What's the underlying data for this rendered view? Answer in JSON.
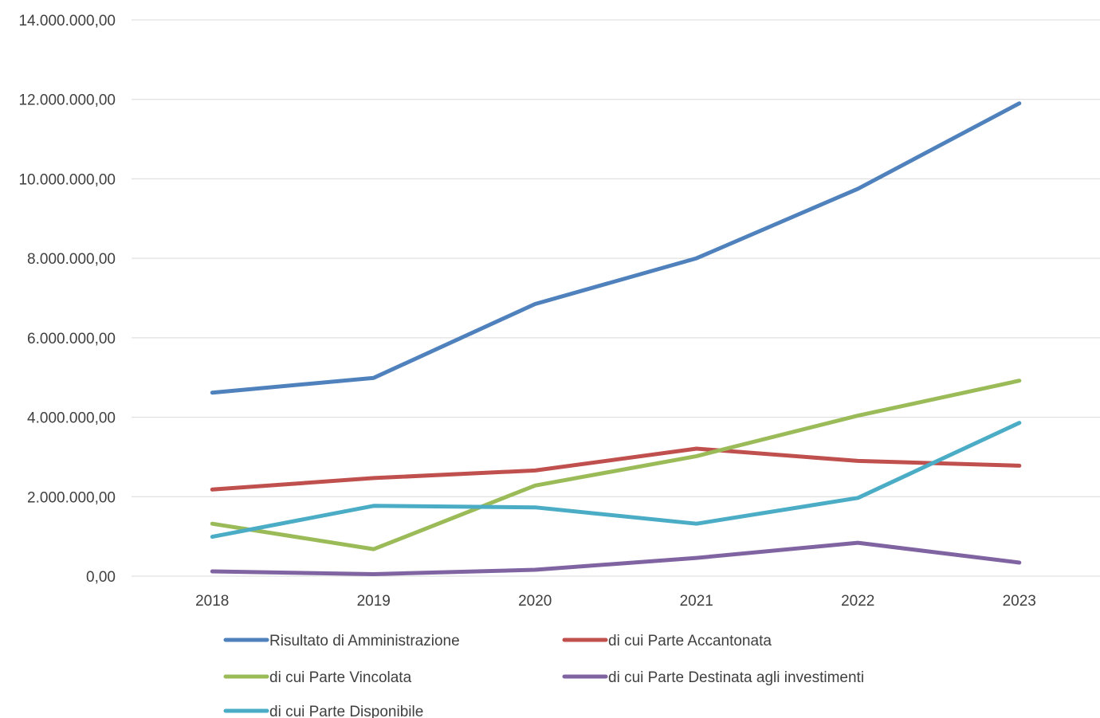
{
  "chart_data": {
    "type": "line",
    "categories": [
      "2018",
      "2019",
      "2020",
      "2021",
      "2022",
      "2023"
    ],
    "ylim": [
      0,
      14000000
    ],
    "y_ticks": [
      {
        "value": 0,
        "label": "0,00"
      },
      {
        "value": 2000000,
        "label": "2.000.000,00"
      },
      {
        "value": 4000000,
        "label": "4.000.000,00"
      },
      {
        "value": 6000000,
        "label": "6.000.000,00"
      },
      {
        "value": 8000000,
        "label": "8.000.000,00"
      },
      {
        "value": 10000000,
        "label": "10.000.000,00"
      },
      {
        "value": 12000000,
        "label": "12.000.000,00"
      },
      {
        "value": 14000000,
        "label": "14.000.000,00"
      }
    ],
    "grid": true,
    "legend_position": "bottom",
    "series": [
      {
        "name": "Risultato di Amministrazione",
        "color": "#4f81bd",
        "values": [
          4620000,
          4990000,
          6850000,
          8000000,
          9750000,
          11900000
        ]
      },
      {
        "name": "di cui Parte Accantonata",
        "color": "#c0504d",
        "values": [
          2180000,
          2470000,
          2660000,
          3210000,
          2900000,
          2780000
        ]
      },
      {
        "name": "di cui Parte Vincolata",
        "color": "#9bbb59",
        "values": [
          1320000,
          680000,
          2280000,
          3020000,
          4040000,
          4920000
        ]
      },
      {
        "name": "di cui Parte Destinata agli investimenti",
        "color": "#8064a2",
        "values": [
          120000,
          50000,
          160000,
          460000,
          840000,
          340000
        ]
      },
      {
        "name": "di cui Parte Disponibile",
        "color": "#4bacc6",
        "values": [
          990000,
          1770000,
          1730000,
          1320000,
          1970000,
          3860000
        ]
      }
    ]
  }
}
